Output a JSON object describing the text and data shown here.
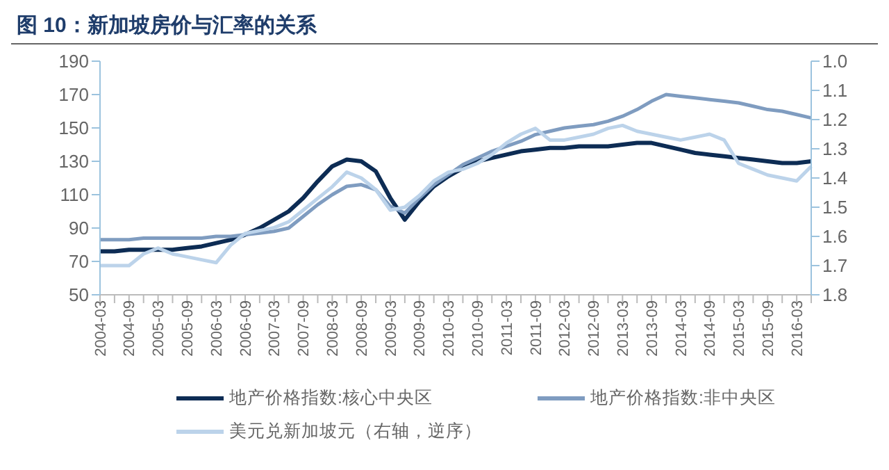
{
  "chart_data": {
    "type": "line",
    "title": "图 10：新加坡房价与汇率的关系",
    "categories": [
      "2004-03",
      null,
      "2004-09",
      null,
      "2005-03",
      null,
      "2005-09",
      null,
      "2006-03",
      null,
      "2006-09",
      null,
      "2007-03",
      null,
      "2007-09",
      null,
      "2008-03",
      null,
      "2008-09",
      null,
      "2009-03",
      null,
      "2009-09",
      null,
      "2010-03",
      null,
      "2010-09",
      null,
      "2011-03",
      null,
      "2011-09",
      null,
      "2012-03",
      null,
      "2012-09",
      null,
      "2013-03",
      null,
      "2013-09",
      null,
      "2014-03",
      null,
      "2014-09",
      null,
      "2015-03",
      null,
      "2015-09",
      null,
      "2016-03",
      null
    ],
    "series": [
      {
        "name": "地产价格指数:核心中央区",
        "color": "#0d2c54",
        "values": [
          76,
          76,
          77,
          77,
          77,
          77,
          78,
          79,
          81,
          83,
          86,
          90,
          95,
          100,
          108,
          118,
          127,
          131,
          130,
          124,
          108,
          95,
          106,
          115,
          121,
          126,
          130,
          132,
          134,
          136,
          137,
          138,
          138,
          139,
          139,
          139,
          140,
          141,
          141,
          139,
          137,
          135,
          134,
          133,
          132,
          131,
          130,
          129,
          129,
          130
        ]
      },
      {
        "name": "地产价格指数:非中央区",
        "color": "#7f9cc0",
        "values": [
          83,
          83,
          83,
          84,
          84,
          84,
          84,
          84,
          85,
          85,
          86,
          87,
          88,
          90,
          97,
          104,
          110,
          115,
          116,
          113,
          103,
          99,
          108,
          116,
          122,
          128,
          132,
          136,
          139,
          142,
          146,
          148,
          150,
          151,
          152,
          154,
          157,
          161,
          166,
          170,
          169,
          168,
          167,
          166,
          165,
          163,
          161,
          160,
          158,
          156
        ]
      },
      {
        "name": "美元兑新加坡元（右轴，逆序）",
        "color": "#bcd3ea",
        "axis": "y2",
        "values": [
          1.7,
          1.7,
          1.7,
          1.66,
          1.64,
          1.66,
          1.67,
          1.68,
          1.69,
          1.63,
          1.59,
          1.58,
          1.57,
          1.55,
          1.51,
          1.47,
          1.43,
          1.38,
          1.4,
          1.44,
          1.51,
          1.5,
          1.46,
          1.41,
          1.38,
          1.37,
          1.35,
          1.32,
          1.28,
          1.25,
          1.23,
          1.27,
          1.27,
          1.26,
          1.25,
          1.23,
          1.22,
          1.24,
          1.25,
          1.26,
          1.27,
          1.26,
          1.25,
          1.27,
          1.35,
          1.37,
          1.39,
          1.4,
          1.41,
          1.36
        ]
      }
    ],
    "ylim": [
      50,
      190
    ],
    "yticks": [
      50,
      70,
      90,
      110,
      130,
      150,
      170,
      190
    ],
    "y2lim": [
      1.8,
      1.0
    ],
    "y2ticks": [
      {
        "value": 1,
        "label": "1.0"
      },
      1.1,
      1.2,
      1.3,
      1.4,
      1.5,
      1.6,
      1.7,
      1.8
    ],
    "legend": "bottom",
    "marker": "none",
    "line_style": "solid"
  }
}
